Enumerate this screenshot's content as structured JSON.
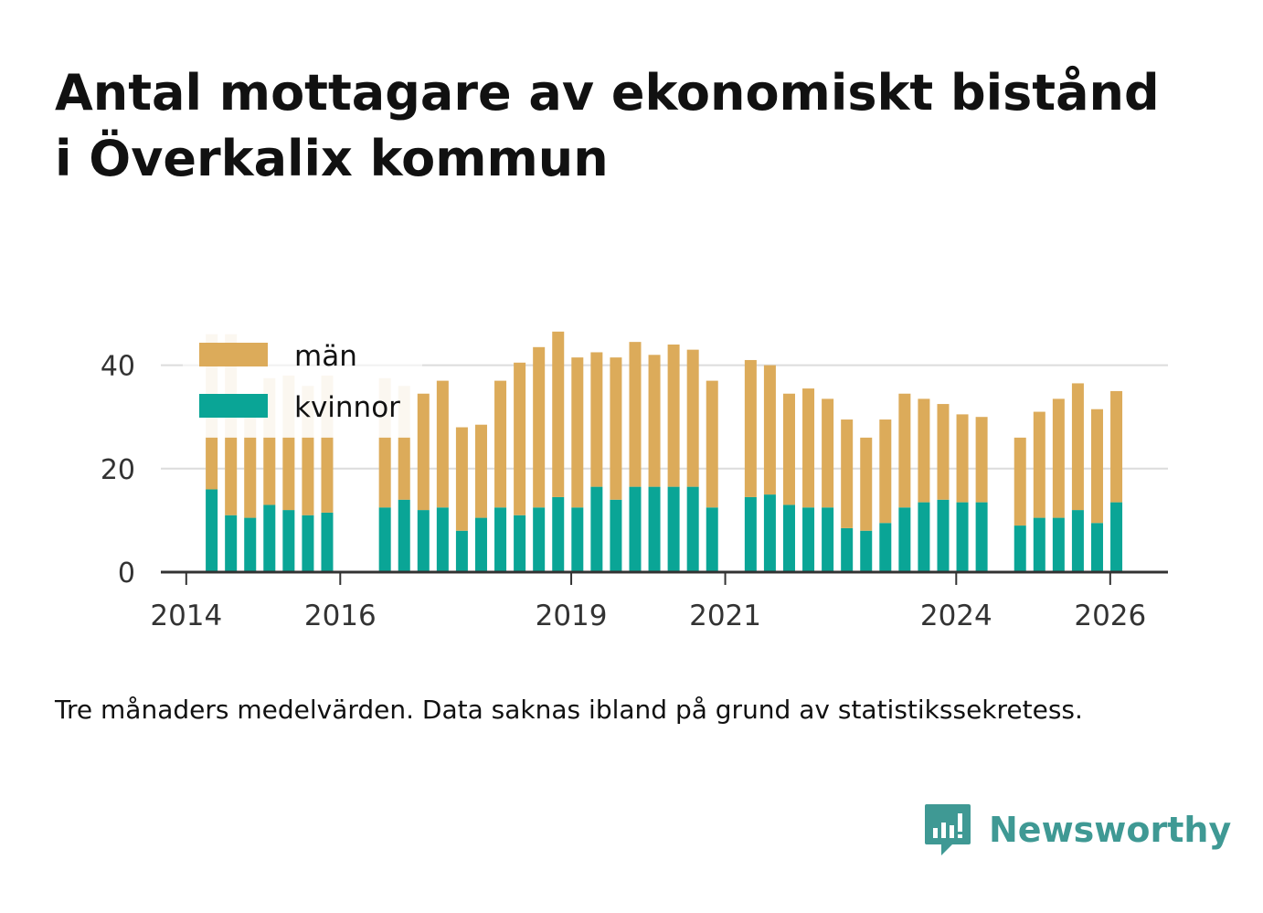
{
  "title": {
    "line1": "Antal mottagare av ekonomiskt bistånd",
    "line2": "i Överkalix kommun"
  },
  "caption": "Tre månaders medelvärden. Data saknas ibland på grund av statistikssekretess.",
  "brand": {
    "name": "Newsworthy",
    "icon": "newsworthy-logo-icon",
    "color": "#3f9994"
  },
  "colors": {
    "men": "#dcab5a",
    "women": "#0aa596",
    "grid": "#dcdcdc",
    "axis": "#333333",
    "text": "#333333"
  },
  "chart_data": {
    "type": "bar",
    "stacked": true,
    "title": "Antal mottagare av ekonomiskt bistånd i Överkalix kommun",
    "xlabel": "",
    "ylabel": "",
    "ylim": [
      0,
      47
    ],
    "yticks": [
      0,
      20,
      40
    ],
    "xlim": [
      2013.67,
      2026.75
    ],
    "xticks": [
      2014,
      2016,
      2019,
      2021,
      2024,
      2026
    ],
    "legend": {
      "position": "top-left",
      "entries": [
        "män",
        "kvinnor"
      ]
    },
    "x": [
      2014.33,
      2014.58,
      2014.83,
      2015.08,
      2015.33,
      2015.58,
      2015.83,
      2016.58,
      2016.83,
      2017.08,
      2017.33,
      2017.58,
      2017.83,
      2018.08,
      2018.33,
      2018.58,
      2018.83,
      2019.08,
      2019.33,
      2019.58,
      2019.83,
      2020.08,
      2020.33,
      2020.58,
      2020.83,
      2021.33,
      2021.58,
      2021.83,
      2022.08,
      2022.33,
      2022.58,
      2022.83,
      2023.08,
      2023.33,
      2023.58,
      2023.83,
      2024.08,
      2024.33,
      2024.83,
      2025.08,
      2025.33,
      2025.58,
      2025.83,
      2026.08
    ],
    "series": [
      {
        "name": "kvinnor",
        "values": [
          16,
          11,
          10.5,
          13,
          12,
          11,
          11.5,
          12.5,
          14,
          12,
          12.5,
          8,
          10.5,
          12.5,
          11,
          12.5,
          14.5,
          12.5,
          16.5,
          14,
          16.5,
          16.5,
          16.5,
          16.5,
          12.5,
          14.5,
          15,
          13,
          12.5,
          12.5,
          8.5,
          8,
          9.5,
          12.5,
          13.5,
          14,
          13.5,
          13.5,
          9,
          10.5,
          10.5,
          12,
          9.5,
          13.5
        ]
      },
      {
        "name": "män",
        "values": [
          10,
          15,
          15.5,
          13,
          14,
          15,
          14.5,
          13.5,
          12,
          22.5,
          24.5,
          20,
          18,
          24.5,
          29.5,
          31,
          32,
          29,
          26,
          27.5,
          28,
          25.5,
          27.5,
          26.5,
          24.5,
          26.5,
          25,
          21.5,
          23,
          21,
          21,
          18,
          20,
          22,
          20,
          18.5,
          17,
          16.5,
          17,
          20.5,
          23,
          24.5,
          22,
          21.5
        ]
      }
    ],
    "faded_overlay": {
      "note": "values hidden behind legend box",
      "x": [
        2014.33,
        2014.58,
        2014.83,
        2015.08,
        2015.33,
        2015.58,
        2015.83,
        2016.58,
        2016.83
      ],
      "totals": [
        46,
        46,
        30,
        37.5,
        38,
        36,
        38,
        37.5,
        36
      ]
    }
  }
}
